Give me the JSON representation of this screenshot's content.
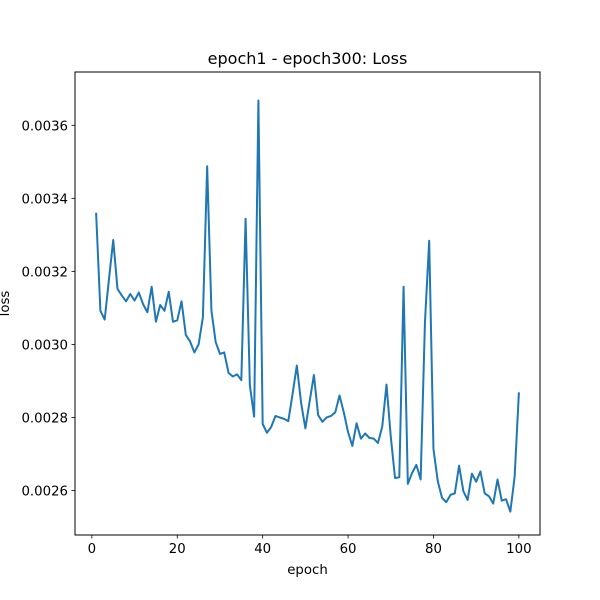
{
  "chart_data": {
    "type": "line",
    "title": "epoch1 - epoch300: Loss",
    "xlabel": "epoch",
    "ylabel": "loss",
    "xlim": [
      -3.95,
      104.95
    ],
    "ylim": [
      0.002478,
      0.003746
    ],
    "x_ticks": [
      0,
      20,
      40,
      60,
      80,
      100
    ],
    "x_tick_labels": [
      "0",
      "20",
      "40",
      "60",
      "80",
      "100"
    ],
    "y_ticks": [
      0.0026,
      0.0028,
      0.003,
      0.0032,
      0.0034,
      0.0036
    ],
    "y_tick_labels": [
      "0.0026",
      "0.0028",
      "0.0030",
      "0.0032",
      "0.0034",
      "0.0036"
    ],
    "grid": false,
    "line_color": "#1f77b4",
    "series": [
      {
        "x": [
          1,
          2,
          3,
          4,
          5,
          6,
          7,
          8,
          9,
          10,
          11,
          12,
          13,
          14,
          15,
          16,
          17,
          18,
          19,
          20,
          21,
          22,
          23,
          24,
          25,
          26,
          27,
          28,
          29,
          30,
          31,
          32,
          33,
          34,
          35,
          36,
          37,
          38,
          39,
          40,
          41,
          42,
          43,
          44,
          45,
          46,
          47,
          48,
          49,
          50,
          51,
          52,
          53,
          54,
          55,
          56,
          57,
          58,
          59,
          60,
          61,
          62,
          63,
          64,
          65,
          66,
          67,
          68,
          69,
          70,
          71,
          72,
          73,
          74,
          75,
          76,
          77,
          78,
          79,
          80,
          81,
          82,
          83,
          84,
          85,
          86,
          87,
          88,
          89,
          90,
          91,
          92,
          93,
          94,
          95,
          96,
          97,
          98,
          99,
          100
        ],
        "values": [
          0.003358,
          0.003092,
          0.003068,
          0.003178,
          0.003286,
          0.003152,
          0.003134,
          0.003118,
          0.003138,
          0.00312,
          0.003142,
          0.00311,
          0.003088,
          0.003158,
          0.003062,
          0.003108,
          0.003092,
          0.003144,
          0.003062,
          0.003066,
          0.003118,
          0.003026,
          0.003008,
          0.002978,
          0.003,
          0.003074,
          0.003488,
          0.003092,
          0.003006,
          0.002974,
          0.002978,
          0.002922,
          0.002912,
          0.002918,
          0.002902,
          0.003344,
          0.002888,
          0.002802,
          0.003668,
          0.002782,
          0.002758,
          0.002774,
          0.002804,
          0.0028,
          0.002796,
          0.00279,
          0.002864,
          0.002942,
          0.00284,
          0.00277,
          0.002844,
          0.002916,
          0.002806,
          0.002788,
          0.0028,
          0.002804,
          0.002814,
          0.00286,
          0.002814,
          0.00276,
          0.002722,
          0.002784,
          0.002742,
          0.002756,
          0.002744,
          0.002742,
          0.00273,
          0.002774,
          0.00289,
          0.002748,
          0.002634,
          0.002636,
          0.003158,
          0.002618,
          0.002648,
          0.00267,
          0.00263,
          0.003058,
          0.003284,
          0.002714,
          0.002626,
          0.00258,
          0.002568,
          0.002588,
          0.002592,
          0.002668,
          0.002598,
          0.002574,
          0.002646,
          0.002624,
          0.002652,
          0.002592,
          0.002584,
          0.002564,
          0.00263,
          0.002572,
          0.002576,
          0.002542,
          0.002636,
          0.002866
        ]
      }
    ]
  }
}
